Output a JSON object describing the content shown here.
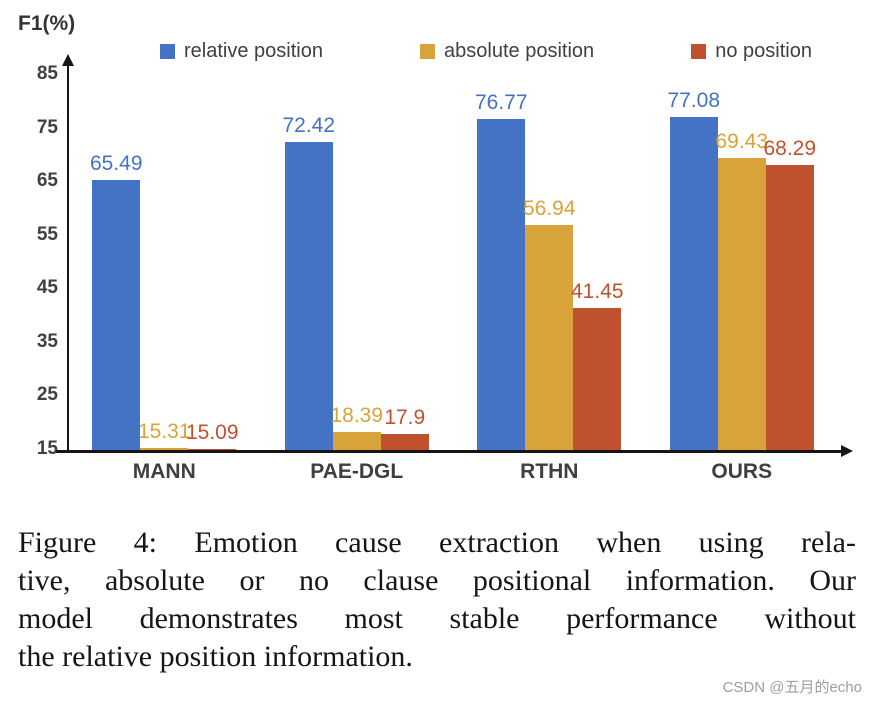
{
  "chart_data": {
    "type": "bar",
    "title": "",
    "ylabel": "F1(%)",
    "categories": [
      "MANN",
      "PAE-DGL",
      "RTHN",
      "OURS"
    ],
    "series": [
      {
        "name": "relative position",
        "color": "#4472C4",
        "values": [
          65.49,
          72.42,
          76.77,
          77.08
        ]
      },
      {
        "name": "absolute position",
        "color": "#D9A33B",
        "values": [
          15.31,
          18.39,
          56.94,
          69.43
        ]
      },
      {
        "name": "no position",
        "color": "#C0512E",
        "values": [
          15.09,
          17.9,
          41.45,
          68.29
        ]
      }
    ],
    "ylim": [
      15,
      85
    ],
    "yticks": [
      15,
      25,
      35,
      45,
      55,
      65,
      75,
      85
    ],
    "grid": false,
    "legend_position": "top"
  },
  "caption": {
    "lines": [
      "Figure 4: Emotion cause extraction when using rela-",
      "tive, absolute or no clause positional information. Our",
      "model demonstrates most stable performance without",
      "the relative position information."
    ]
  },
  "watermark": "CSDN @五月的echo"
}
